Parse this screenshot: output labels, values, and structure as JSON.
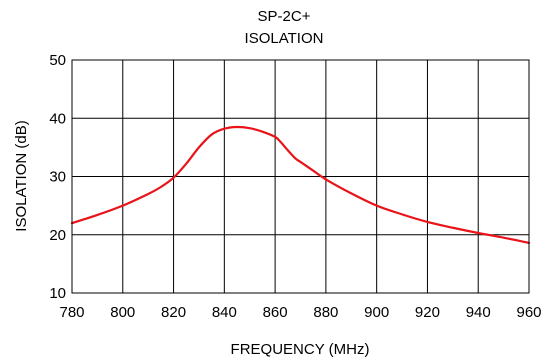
{
  "chart_data": {
    "type": "line",
    "title": "SP-2C+",
    "subtitle": "ISOLATION",
    "xlabel": "FREQUENCY (MHz)",
    "ylabel": "ISOLATION (dB)",
    "xlim": [
      780,
      960
    ],
    "ylim": [
      10,
      50
    ],
    "xticks": [
      780,
      800,
      820,
      840,
      860,
      880,
      900,
      920,
      940,
      960
    ],
    "yticks": [
      10,
      20,
      30,
      40,
      50
    ],
    "grid": true,
    "legend": "none",
    "series": [
      {
        "color": "#e8141a",
        "x": [
          780,
          790,
          800,
          810,
          815,
          820,
          825,
          830,
          835,
          840,
          845,
          850,
          855,
          860,
          862,
          865,
          868,
          870,
          875,
          880,
          890,
          900,
          910,
          920,
          930,
          940,
          950,
          960
        ],
        "y": [
          22.0,
          23.4,
          25.0,
          27.0,
          28.2,
          29.8,
          32.2,
          35.0,
          37.2,
          38.2,
          38.5,
          38.3,
          37.7,
          36.8,
          36.0,
          34.5,
          33.1,
          32.5,
          31.0,
          29.5,
          27.1,
          25.0,
          23.5,
          22.2,
          21.2,
          20.3,
          19.5,
          18.6
        ]
      }
    ]
  }
}
